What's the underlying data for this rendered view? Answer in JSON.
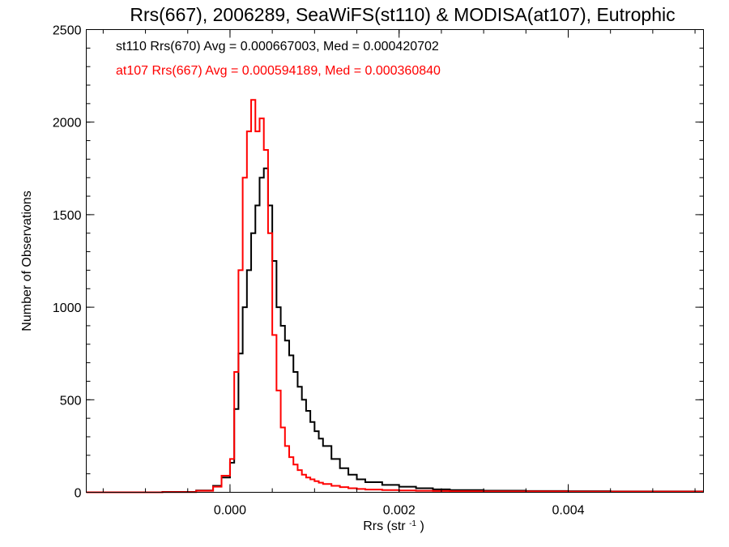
{
  "chart_data": {
    "type": "line",
    "title": "Rrs(667), 2006289, SeaWiFS(st110) & MODISA(at107), Eutrophic",
    "xlabel": {
      "base": "Rrs (str",
      "sup": "-1",
      "tail": ")"
    },
    "ylabel": "Number of Observations",
    "xlim": [
      -0.0017,
      0.0056
    ],
    "ylim": [
      0,
      2500
    ],
    "x_ticks": [
      0.0,
      0.002,
      0.004
    ],
    "x_tick_labels": [
      "0.000",
      "0.002",
      "0.004"
    ],
    "y_ticks": [
      0,
      500,
      1000,
      1500,
      2000,
      2500
    ],
    "y_tick_labels": [
      "0",
      "500",
      "1000",
      "1500",
      "2000",
      "2500"
    ],
    "grid": false,
    "legend_position": "top-left",
    "series": [
      {
        "name": "st110 Rrs(670) Avg = 0.000667003, Med = 0.000420702",
        "color": "#000000",
        "step": "histogram",
        "x": [
          -0.0017,
          -0.0008,
          -0.0004,
          -0.0002,
          -0.0001,
          0.0,
          5e-05,
          0.0001,
          0.00015,
          0.0002,
          0.00025,
          0.0003,
          0.00035,
          0.0004,
          0.00045,
          0.0005,
          0.00055,
          0.0006,
          0.00065,
          0.0007,
          0.00075,
          0.0008,
          0.00085,
          0.0009,
          0.00095,
          0.001,
          0.00105,
          0.0011,
          0.0012,
          0.0013,
          0.0014,
          0.0015,
          0.0016,
          0.0018,
          0.002,
          0.0022,
          0.0024,
          0.0026,
          0.003,
          0.0035,
          0.004,
          0.0045,
          0.005,
          0.0056
        ],
        "y": [
          0,
          2,
          10,
          35,
          80,
          160,
          450,
          750,
          1000,
          1200,
          1400,
          1550,
          1700,
          1750,
          1550,
          1250,
          1000,
          900,
          820,
          740,
          650,
          570,
          500,
          440,
          380,
          330,
          290,
          250,
          180,
          130,
          95,
          70,
          55,
          40,
          30,
          22,
          16,
          12,
          9,
          7,
          6,
          5,
          5,
          5
        ]
      },
      {
        "name": "at107 Rrs(667) Avg = 0.000594189, Med = 0.000360840",
        "color": "#ff0000",
        "step": "histogram",
        "x": [
          -0.0017,
          -0.0008,
          -0.0004,
          -0.0002,
          -0.0001,
          0.0,
          5e-05,
          0.0001,
          0.00015,
          0.0002,
          0.00025,
          0.0003,
          0.00035,
          0.0004,
          0.00045,
          0.0005,
          0.00055,
          0.0006,
          0.00065,
          0.0007,
          0.00075,
          0.0008,
          0.00085,
          0.0009,
          0.00095,
          0.001,
          0.00105,
          0.0011,
          0.0012,
          0.0013,
          0.0014,
          0.0015,
          0.0016,
          0.0018,
          0.002,
          0.0022,
          0.0024,
          0.0026,
          0.003,
          0.0035,
          0.004,
          0.0045,
          0.005,
          0.0056
        ],
        "y": [
          0,
          1,
          8,
          30,
          90,
          180,
          650,
          1200,
          1700,
          1950,
          2120,
          1950,
          2020,
          1850,
          1400,
          850,
          550,
          350,
          250,
          190,
          150,
          120,
          95,
          80,
          70,
          60,
          52,
          45,
          35,
          28,
          22,
          18,
          15,
          12,
          10,
          8,
          7,
          6,
          5,
          5,
          4,
          4,
          4,
          4
        ]
      }
    ]
  }
}
